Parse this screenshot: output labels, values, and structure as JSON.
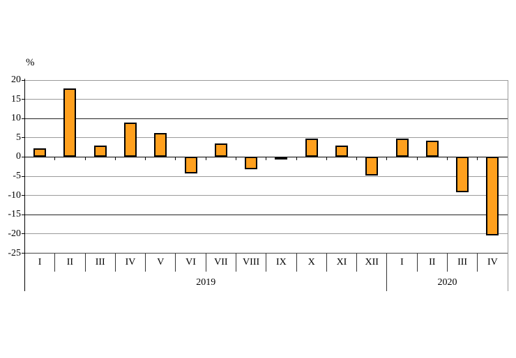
{
  "chart_data": {
    "type": "bar",
    "title": "",
    "xlabel": "",
    "ylabel": "%",
    "ylim": [
      -25,
      20
    ],
    "yticks": [
      20,
      15,
      10,
      5,
      0,
      -5,
      -10,
      -15,
      -20,
      -25
    ],
    "grid": true,
    "legend": false,
    "bar_color": "#ffa01e",
    "bar_border_color": "#000000",
    "gridline_color": "#9a9a9a",
    "dark_gridlines": [
      10,
      -15
    ],
    "zero_line_color": "#000000",
    "bottom_line_color": "#444444",
    "axis_color": "#000000",
    "text_color": "#000000",
    "groups": [
      {
        "year": "2019",
        "categories": [
          "I",
          "II",
          "III",
          "IV",
          "V",
          "VI",
          "VII",
          "VIII",
          "IX",
          "X",
          "XI",
          "XII"
        ],
        "values": [
          2.3,
          17.8,
          2.9,
          8.9,
          6.3,
          -4.3,
          3.6,
          -3.2,
          -0.2,
          4.7,
          3.0,
          -4.8
        ]
      },
      {
        "year": "2020",
        "categories": [
          "I",
          "II",
          "III",
          "IV"
        ],
        "values": [
          4.7,
          4.2,
          -9.2,
          -20.4
        ]
      }
    ]
  }
}
